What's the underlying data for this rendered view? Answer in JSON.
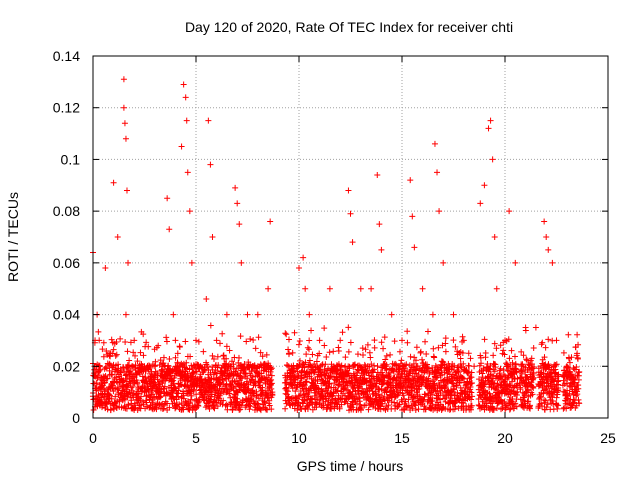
{
  "chart_data": {
    "type": "scatter",
    "title": "Day 120 of 2020, Rate Of TEC Index for receiver chti",
    "xlabel": "GPS time / hours",
    "ylabel": "ROTI / TECUs",
    "xlim": [
      0,
      25
    ],
    "ylim": [
      0,
      0.14
    ],
    "xticks": [
      0,
      5,
      10,
      15,
      20,
      25
    ],
    "yticks": [
      0,
      0.02,
      0.04,
      0.06,
      0.08,
      0.1,
      0.12,
      0.14
    ],
    "xtick_labels": [
      "0",
      "5",
      "10",
      "15",
      "20",
      "25"
    ],
    "ytick_labels": [
      "0",
      "0.02",
      "0.04",
      "0.06",
      "0.08",
      "0.1",
      "0.12",
      "0.14"
    ],
    "grid": true,
    "marker": "+",
    "color": "#ff0000",
    "series": [
      {
        "name": "ROTI",
        "x": [
          0.0,
          0.1,
          0.2,
          0.3,
          0.6,
          1.0,
          1.2,
          1.5,
          1.5,
          1.55,
          1.6,
          1.65,
          1.7,
          1.6,
          2.0,
          2.5,
          3.0,
          3.5,
          3.6,
          3.7,
          3.9,
          4.0,
          4.3,
          4.4,
          4.5,
          4.55,
          4.6,
          4.7,
          4.8,
          5.0,
          5.5,
          5.6,
          5.7,
          5.8,
          6.0,
          6.5,
          6.9,
          7.0,
          7.1,
          7.2,
          7.5,
          8.0,
          8.5,
          8.6,
          9.5,
          10.0,
          10.2,
          10.3,
          10.5,
          11.0,
          11.5,
          12.0,
          12.4,
          12.5,
          12.6,
          13.0,
          13.5,
          13.8,
          13.9,
          14.0,
          14.5,
          15.0,
          15.4,
          15.5,
          15.6,
          16.0,
          16.5,
          16.6,
          16.7,
          16.8,
          17.0,
          17.5,
          18.0,
          18.5,
          18.8,
          19.0,
          19.2,
          19.3,
          19.4,
          19.5,
          19.6,
          20.0,
          20.2,
          20.5,
          21.0,
          21.5,
          21.9,
          22.0,
          22.1,
          22.3,
          22.5,
          23.0,
          23.5
        ],
        "y": [
          0.064,
          0.03,
          0.04,
          0.03,
          0.058,
          0.091,
          0.07,
          0.131,
          0.12,
          0.114,
          0.108,
          0.088,
          0.06,
          0.04,
          0.03,
          0.02,
          0.02,
          0.02,
          0.085,
          0.073,
          0.04,
          0.03,
          0.105,
          0.129,
          0.124,
          0.115,
          0.095,
          0.08,
          0.06,
          0.03,
          0.046,
          0.115,
          0.098,
          0.07,
          0.03,
          0.04,
          0.089,
          0.083,
          0.075,
          0.06,
          0.04,
          0.04,
          0.05,
          0.076,
          0.02,
          0.058,
          0.062,
          0.05,
          0.04,
          0.03,
          0.05,
          0.03,
          0.088,
          0.079,
          0.068,
          0.05,
          0.05,
          0.094,
          0.075,
          0.065,
          0.04,
          0.03,
          0.092,
          0.078,
          0.066,
          0.05,
          0.04,
          0.106,
          0.095,
          0.08,
          0.06,
          0.04,
          0.03,
          0.02,
          0.083,
          0.09,
          0.112,
          0.115,
          0.1,
          0.07,
          0.05,
          0.03,
          0.08,
          0.06,
          0.035,
          0.035,
          0.076,
          0.07,
          0.065,
          0.06,
          0.03,
          0.02,
          0.025
        ]
      }
    ],
    "data_gaps_hours": [
      [
        8.7,
        9.3
      ],
      [
        18.4,
        18.7
      ],
      [
        20.6,
        20.7
      ],
      [
        21.4,
        21.6
      ],
      [
        22.6,
        22.8
      ]
    ]
  }
}
